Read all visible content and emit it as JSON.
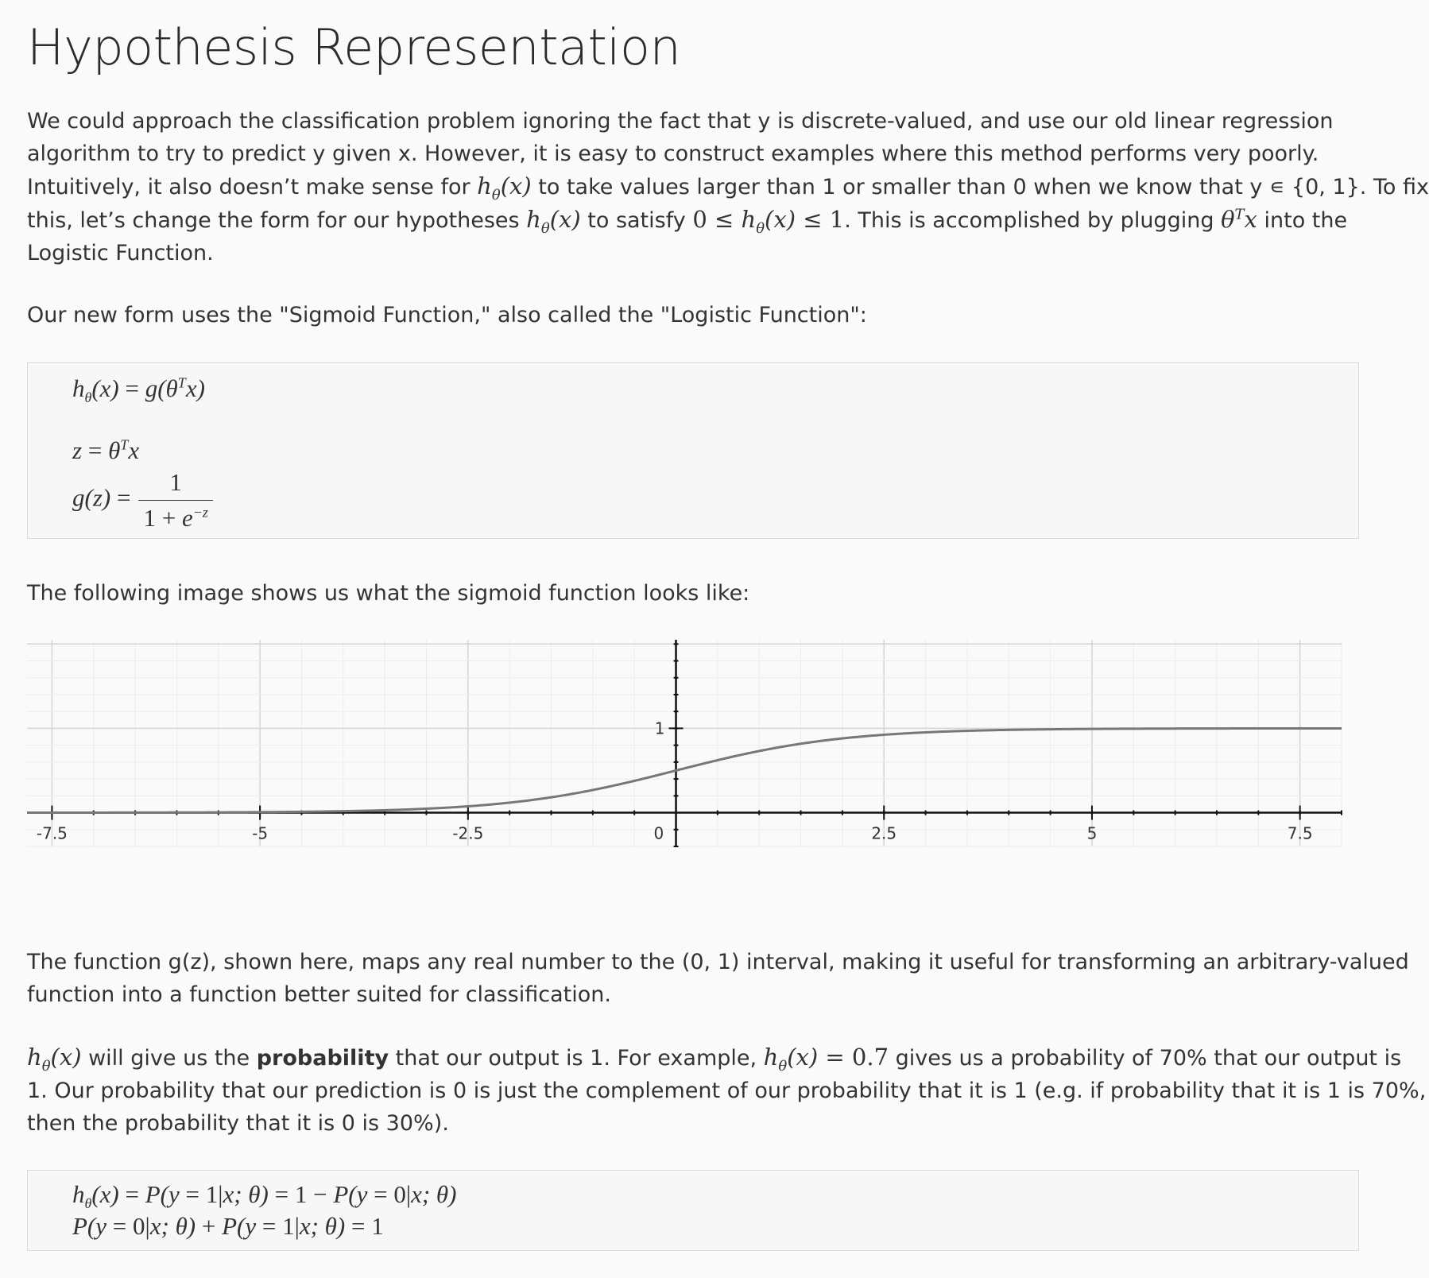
{
  "title": "Hypothesis Representation",
  "intro": {
    "l1": "We could approach the classification problem ignoring the fact that y is discrete-valued, and use our old linear regression",
    "l2": "algorithm to try to predict y given x. However, it is easy to construct examples where this method performs very poorly.",
    "l3a": "Intuitively, it also doesn’t make sense for ",
    "l3b": " to take values larger than 1 or smaller than 0 when we know that y ∊ {0, 1}. To fix",
    "l4a": "this, let’s change the form for our hypotheses ",
    "l4b": " to satisfy ",
    "l4c": ". This is accomplished by plugging ",
    "l4d": " into the",
    "l5": "Logistic Function."
  },
  "sigmoid_intro": "Our new form uses the \"Sigmoid Function,\" also called the \"Logistic Function\":",
  "image_intro": "The following image shows us what the sigmoid function looks like:",
  "gz_desc": {
    "l1": "The function g(z), shown here, maps any real number to the (0, 1) interval, making it useful for transforming an arbitrary-valued",
    "l2": "function into a function better suited for classification."
  },
  "prob": {
    "l1a": " will give us the ",
    "l1bold": "probability",
    "l1b": " that our output is 1. For example, ",
    "l1c": " gives us a probability of 70% that our output is",
    "l2": "1. Our probability that our prediction is 0 is just the complement of our probability that it is 1 (e.g. if probability that it is 1 is 70%,",
    "l3": "then the probability that it is 0 is 30%)."
  },
  "chart_data": {
    "type": "line",
    "function": "sigmoid",
    "xlim": [
      -7.8,
      8
    ],
    "ylim": [
      -0.4,
      2.05
    ],
    "x_ticks": [
      -7.5,
      -5,
      -2.5,
      0,
      2.5,
      5,
      7.5
    ],
    "x_tick_labels": [
      "-7.5",
      "-5",
      "-2.5",
      "0",
      "2.5",
      "5",
      "7.5"
    ],
    "y_ticks": [
      1
    ],
    "y_tick_labels": [
      "1"
    ],
    "grid": true,
    "line_color": "#777777"
  }
}
